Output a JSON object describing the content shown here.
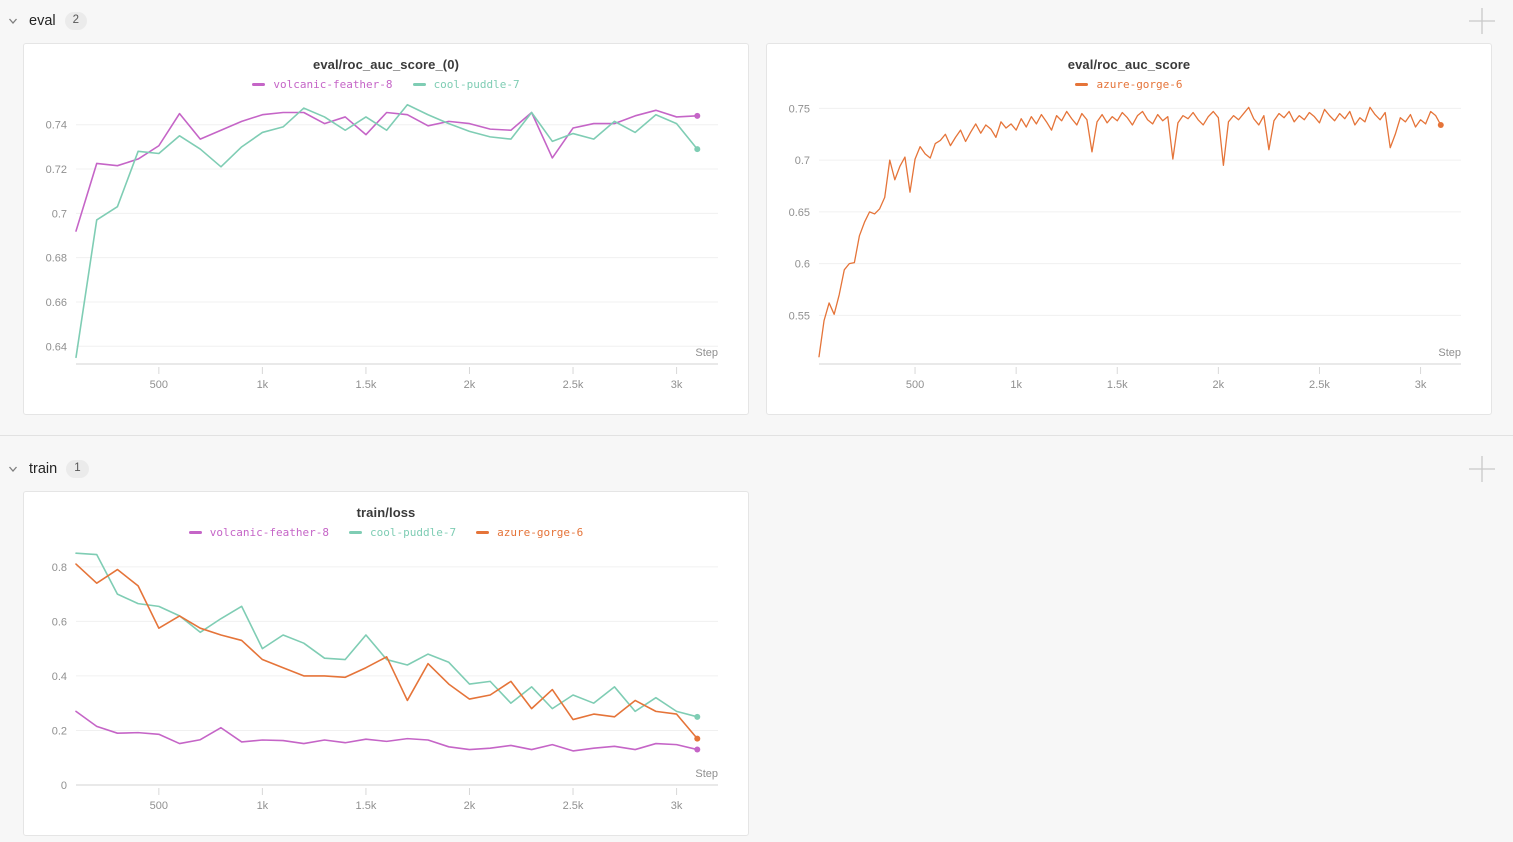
{
  "icons": {
    "chevron_down": "v",
    "plus": "+"
  },
  "sections": [
    {
      "name": "eval",
      "badge": "2"
    },
    {
      "name": "train",
      "badge": "1"
    }
  ],
  "chart_data": [
    {
      "type": "line",
      "title": "eval/roc_auc_score_(0)",
      "xlabel": "Step",
      "legend_position": "top-center",
      "grid": true,
      "x_domain": [
        100,
        3200
      ],
      "x_ticks": [
        {
          "v": 500,
          "label": "500"
        },
        {
          "v": 1000,
          "label": "1k"
        },
        {
          "v": 1500,
          "label": "1.5k"
        },
        {
          "v": 2000,
          "label": "2k"
        },
        {
          "v": 2500,
          "label": "2.5k"
        },
        {
          "v": 3000,
          "label": "3k"
        }
      ],
      "y_domain": [
        0.632,
        0.7525
      ],
      "y_ticks": [
        {
          "v": 0.64,
          "label": "0.64"
        },
        {
          "v": 0.66,
          "label": "0.66"
        },
        {
          "v": 0.68,
          "label": "0.68"
        },
        {
          "v": 0.7,
          "label": "0.7"
        },
        {
          "v": 0.72,
          "label": "0.72"
        },
        {
          "v": 0.74,
          "label": "0.74"
        }
      ],
      "x_start": 100,
      "x_step": 100,
      "series": [
        {
          "name": "volcanic-feather-8",
          "color": "#C565C7",
          "values": [
            0.692,
            0.7225,
            0.7215,
            0.7245,
            0.7305,
            0.745,
            0.7335,
            0.7375,
            0.7415,
            0.7445,
            0.7455,
            0.7455,
            0.7405,
            0.7435,
            0.7355,
            0.7455,
            0.7445,
            0.7395,
            0.7415,
            0.7405,
            0.738,
            0.7375,
            0.7455,
            0.725,
            0.7385,
            0.7405,
            0.7405,
            0.744,
            0.7465,
            0.7435,
            0.744
          ]
        },
        {
          "name": "cool-puddle-7",
          "color": "#7FCDB4",
          "values": [
            0.635,
            0.697,
            0.703,
            0.728,
            0.727,
            0.735,
            0.729,
            0.721,
            0.73,
            0.7365,
            0.739,
            0.7475,
            0.7435,
            0.7375,
            0.7435,
            0.7375,
            0.749,
            0.7445,
            0.7405,
            0.737,
            0.7345,
            0.7335,
            0.7455,
            0.7325,
            0.736,
            0.7335,
            0.7415,
            0.7365,
            0.7445,
            0.7405,
            0.729
          ]
        }
      ]
    },
    {
      "type": "line",
      "title": "eval/roc_auc_score",
      "xlabel": "Step",
      "legend_position": "top-center",
      "grid": true,
      "x_domain": [
        25,
        3200
      ],
      "x_ticks": [
        {
          "v": 500,
          "label": "500"
        },
        {
          "v": 1000,
          "label": "1k"
        },
        {
          "v": 1500,
          "label": "1.5k"
        },
        {
          "v": 2000,
          "label": "2k"
        },
        {
          "v": 2500,
          "label": "2.5k"
        },
        {
          "v": 3000,
          "label": "3k"
        }
      ],
      "y_domain": [
        0.503,
        0.761
      ],
      "y_ticks": [
        {
          "v": 0.55,
          "label": "0.55"
        },
        {
          "v": 0.6,
          "label": "0.6"
        },
        {
          "v": 0.65,
          "label": "0.65"
        },
        {
          "v": 0.7,
          "label": "0.7"
        },
        {
          "v": 0.75,
          "label": "0.75"
        }
      ],
      "x_start": 25,
      "x_step": 25,
      "series": [
        {
          "name": "azure-gorge-6",
          "color": "#E57439",
          "values": [
            0.51,
            0.545,
            0.562,
            0.551,
            0.57,
            0.594,
            0.6,
            0.601,
            0.627,
            0.64,
            0.65,
            0.648,
            0.653,
            0.664,
            0.7,
            0.681,
            0.694,
            0.703,
            0.669,
            0.701,
            0.713,
            0.706,
            0.702,
            0.716,
            0.719,
            0.725,
            0.714,
            0.722,
            0.729,
            0.718,
            0.727,
            0.735,
            0.726,
            0.734,
            0.73,
            0.722,
            0.737,
            0.731,
            0.735,
            0.729,
            0.74,
            0.732,
            0.742,
            0.735,
            0.744,
            0.737,
            0.729,
            0.743,
            0.738,
            0.747,
            0.74,
            0.734,
            0.745,
            0.739,
            0.708,
            0.737,
            0.744,
            0.736,
            0.742,
            0.738,
            0.746,
            0.741,
            0.734,
            0.743,
            0.747,
            0.739,
            0.735,
            0.744,
            0.738,
            0.742,
            0.701,
            0.736,
            0.743,
            0.74,
            0.746,
            0.739,
            0.734,
            0.742,
            0.747,
            0.741,
            0.695,
            0.737,
            0.743,
            0.739,
            0.745,
            0.751,
            0.74,
            0.734,
            0.743,
            0.71,
            0.738,
            0.745,
            0.741,
            0.747,
            0.737,
            0.743,
            0.739,
            0.746,
            0.742,
            0.736,
            0.749,
            0.743,
            0.738,
            0.745,
            0.74,
            0.747,
            0.734,
            0.741,
            0.737,
            0.751,
            0.744,
            0.739,
            0.746,
            0.712,
            0.725,
            0.741,
            0.737,
            0.744,
            0.732,
            0.739,
            0.735,
            0.747,
            0.743,
            0.734
          ]
        }
      ]
    },
    {
      "type": "line",
      "title": "train/loss",
      "xlabel": "Step",
      "legend_position": "top-center",
      "grid": true,
      "x_domain": [
        100,
        3200
      ],
      "x_ticks": [
        {
          "v": 500,
          "label": "500"
        },
        {
          "v": 1000,
          "label": "1k"
        },
        {
          "v": 1500,
          "label": "1.5k"
        },
        {
          "v": 2000,
          "label": "2k"
        },
        {
          "v": 2500,
          "label": "2.5k"
        },
        {
          "v": 3000,
          "label": "3k"
        }
      ],
      "y_domain": [
        0,
        0.88
      ],
      "y_ticks": [
        {
          "v": 0,
          "label": "0"
        },
        {
          "v": 0.2,
          "label": "0.2"
        },
        {
          "v": 0.4,
          "label": "0.4"
        },
        {
          "v": 0.6,
          "label": "0.6"
        },
        {
          "v": 0.8,
          "label": "0.8"
        }
      ],
      "x_start": 100,
      "x_step": 100,
      "series": [
        {
          "name": "volcanic-feather-8",
          "color": "#C565C7",
          "values": [
            0.27,
            0.215,
            0.19,
            0.192,
            0.186,
            0.152,
            0.166,
            0.21,
            0.158,
            0.165,
            0.163,
            0.152,
            0.165,
            0.155,
            0.168,
            0.16,
            0.17,
            0.165,
            0.14,
            0.13,
            0.135,
            0.145,
            0.13,
            0.148,
            0.125,
            0.135,
            0.142,
            0.13,
            0.152,
            0.148,
            0.13
          ]
        },
        {
          "name": "cool-puddle-7",
          "color": "#7FCDB4",
          "values": [
            0.85,
            0.845,
            0.7,
            0.665,
            0.655,
            0.62,
            0.56,
            0.61,
            0.655,
            0.5,
            0.55,
            0.52,
            0.465,
            0.46,
            0.55,
            0.46,
            0.44,
            0.48,
            0.45,
            0.37,
            0.38,
            0.3,
            0.36,
            0.28,
            0.33,
            0.3,
            0.36,
            0.27,
            0.32,
            0.27,
            0.25
          ]
        },
        {
          "name": "azure-gorge-6",
          "color": "#E57439",
          "values": [
            0.81,
            0.74,
            0.79,
            0.73,
            0.575,
            0.62,
            0.575,
            0.55,
            0.53,
            0.46,
            0.43,
            0.4,
            0.4,
            0.395,
            0.43,
            0.47,
            0.31,
            0.445,
            0.37,
            0.315,
            0.33,
            0.38,
            0.28,
            0.35,
            0.24,
            0.26,
            0.25,
            0.31,
            0.27,
            0.26,
            0.17
          ]
        }
      ]
    }
  ]
}
